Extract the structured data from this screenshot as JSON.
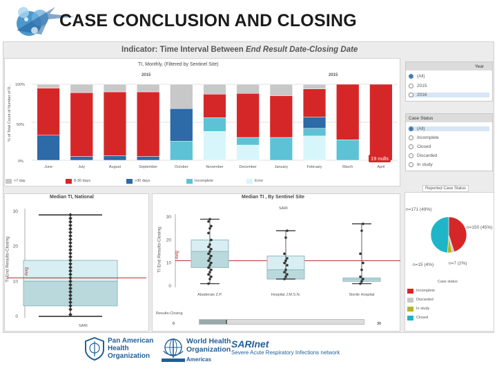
{
  "slide": {
    "title": "CASE CONCLUSION AND CLOSING"
  },
  "indicator": {
    "prefix": "Indicator: Time Interval Between ",
    "emph": "End Result Date-Closing Date"
  },
  "top_chart": {
    "subtitle": "TI, Monthly, (Filtered by Sentinel Site)",
    "year_left": "2015",
    "year_right": "2015",
    "ylabel": "% of Total Count of Number of R...",
    "yticks": [
      "100%",
      "50%",
      "0%"
    ],
    "nulls_badge": "19 nulls",
    "legend": [
      "Error",
      "Incomplete",
      ">30 days",
      "8-30 days",
      "<7 day"
    ]
  },
  "chart_data": [
    {
      "type": "bar",
      "title": "TI, Monthly, (Filtered by Sentinel Site)",
      "ylabel": "% of Total Count of Number of R...",
      "ylim": [
        0,
        100
      ],
      "categories": [
        "June",
        "July",
        "August",
        "September",
        "October",
        "November",
        "December",
        "January",
        "February",
        "March",
        "April"
      ],
      "series": [
        {
          "name": "<7 day",
          "values": [
            0,
            0,
            0,
            0,
            0,
            38,
            20,
            0,
            32,
            0,
            0
          ]
        },
        {
          "name": "8-30 days",
          "values": [
            0,
            0,
            0,
            0,
            25,
            18,
            10,
            30,
            10,
            27,
            0
          ]
        },
        {
          "name": ">30 days",
          "values": [
            33,
            5,
            6,
            5,
            43,
            0,
            0,
            0,
            15,
            0,
            0
          ]
        },
        {
          "name": "Incomplete",
          "values": [
            62,
            84,
            84,
            85,
            0,
            31,
            58,
            55,
            37,
            73,
            100
          ]
        },
        {
          "name": "Error",
          "values": [
            5,
            11,
            10,
            10,
            32,
            13,
            12,
            15,
            6,
            0,
            0
          ]
        }
      ],
      "colors": {
        "Error": "#c8c8c8",
        "Incomplete": "#d62728",
        ">30 days": "#2c6aa8",
        "8-30 days": "#5ec2d6",
        "<7 day": "#d6f6fb"
      }
    },
    {
      "type": "scatter",
      "title": "Median TI, National",
      "xlabel": "SARI",
      "ylabel": "TI End Results-Closing",
      "yticks": [
        0,
        10,
        20,
        30
      ],
      "ylim": [
        0,
        30
      ],
      "points_y": [
        0.5,
        2,
        3,
        4,
        5,
        6,
        7,
        8,
        9,
        10,
        11,
        12,
        13,
        14,
        15,
        16,
        17,
        18,
        19,
        20,
        21,
        22,
        23,
        24,
        25,
        26,
        27,
        28,
        29
      ],
      "box": {
        "q1": 3,
        "median": 10,
        "q3": 16,
        "whisker_low": 0,
        "whisker_high": 29
      },
      "average": 11
    },
    {
      "type": "scatter",
      "title": "Median TI , By Sentinel Site",
      "subtitle": "SARI",
      "ylabel": "TI End Results-Closing",
      "yticks": [
        0,
        10,
        20,
        30
      ],
      "ylim": [
        0,
        30
      ],
      "categories": [
        "Abaderais Z.P.",
        "Hospital J.M.S.N.",
        "Sterile Hospital"
      ],
      "points": [
        [
          1,
          3,
          4,
          5,
          6,
          7,
          8,
          9,
          10,
          11,
          12,
          13,
          14,
          15,
          16,
          17,
          18,
          20,
          23,
          25,
          26,
          28,
          29
        ],
        [
          3,
          4,
          5,
          6,
          7,
          9,
          10,
          11,
          12,
          14,
          21,
          24
        ],
        [
          1,
          2,
          3,
          4,
          7,
          10,
          14,
          24,
          27
        ]
      ],
      "boxes": [
        {
          "q1": 8,
          "median": 15,
          "q3": 20
        },
        {
          "q1": 3,
          "median": 7,
          "q3": 13
        },
        {
          "q1": 2,
          "median": 3,
          "q3": 3.5
        }
      ],
      "average": 11
    },
    {
      "type": "pie",
      "title": "Reported Case Status",
      "labels": [
        "Incomplete",
        "Discarded",
        "In study",
        "Closed"
      ],
      "values": [
        45,
        2,
        4,
        49
      ],
      "colors": [
        "#d62728",
        "#c8c8c8",
        "#b5b52a",
        "#1fb5c9"
      ],
      "annotations": [
        "n=171 (49%)",
        "n=150 (45%)",
        "n=15 (4%)",
        "n=7 (2%)"
      ]
    }
  ],
  "filters": {
    "year": {
      "title": "Year",
      "options": [
        "(All)",
        "2015",
        "2016"
      ]
    },
    "case_status": {
      "title": "Case Status",
      "options": [
        "(All)",
        "Incomplete",
        "Closed",
        "Discarded",
        "In study"
      ]
    }
  },
  "national": {
    "title": "Median TI, National",
    "xlabel": "SARI",
    "ylabel": "TI End Results-Closing",
    "avg": "Avrg",
    "yticks": [
      "30",
      "20",
      "10",
      "0"
    ]
  },
  "site": {
    "title": "Median TI , By Sentinel Site",
    "subtitle": "SARI",
    "ylabel": "TI End Results-Closing",
    "avg": "Avrg",
    "yticks": [
      "30",
      "20",
      "10",
      "0"
    ],
    "sites": [
      "Abaderais Z.P.",
      "Hospital J.M.S.N.",
      "Sterile Hospital"
    ]
  },
  "slider": {
    "label": "Results-Closing",
    "min": "0",
    "max": "30"
  },
  "pie": {
    "title": "Reported Case Status",
    "n_closed": "n=171 (49%)",
    "n_incomplete": "n=150 (45%)",
    "n_instudy": "n=15 (4%)",
    "n_discarded": "n=7 (2%)",
    "legend_title": "Case status",
    "legend": [
      "Incomplete",
      "Discarded",
      "In study",
      "Closed"
    ]
  },
  "logos": {
    "paho": [
      "Pan American",
      "Health",
      "Organization"
    ],
    "who": [
      "World Health",
      "Organization"
    ],
    "who_sub": "Americas",
    "sari_name": "SARInet",
    "sari_sub": "Severe Acute Respiratory Infections network"
  }
}
